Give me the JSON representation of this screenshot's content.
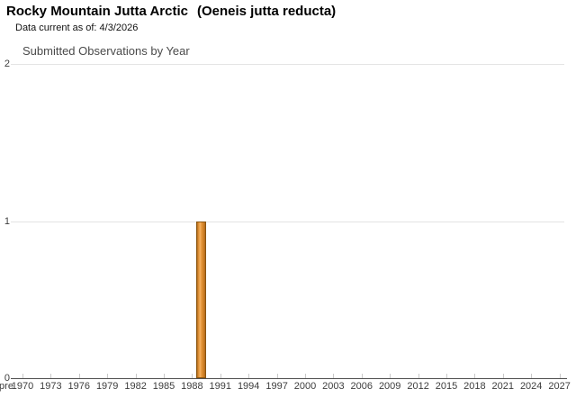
{
  "header": {
    "title_common": "Rocky Mountain Jutta Arctic",
    "title_scientific": "(Oeneis jutta reducta)",
    "data_current_note": "Data current as of: 4/3/2026"
  },
  "chart_data": {
    "type": "bar",
    "title": "Submitted Observations by Year",
    "xlabel": "",
    "ylabel": "",
    "categories": [
      "pre",
      "1970",
      "1973",
      "1976",
      "1979",
      "1982",
      "1985",
      "1988",
      "1991",
      "1994",
      "1997",
      "2000",
      "2003",
      "2006",
      "2009",
      "2012",
      "2015",
      "2018",
      "2021",
      "2024",
      "2027"
    ],
    "y_ticks": [
      0,
      1,
      2
    ],
    "ylim": [
      0,
      2
    ],
    "grid": "horizontal",
    "legend": "none",
    "bars": [
      {
        "year": 1989,
        "value": 1
      }
    ],
    "colors": {
      "bar_border": "#8a5510",
      "bar_gradient": [
        "#b06a1c",
        "#d88a2e",
        "#f5b060",
        "#e09134",
        "#cb7c24",
        "#b06a1c"
      ],
      "gridline": "#e4e4e4",
      "axis_line": "#4f4f4f",
      "tick_mark": "#c9c9c9",
      "axis_label_text": "#3d3d3d",
      "chart_title_text": "#4a4a4a"
    }
  }
}
